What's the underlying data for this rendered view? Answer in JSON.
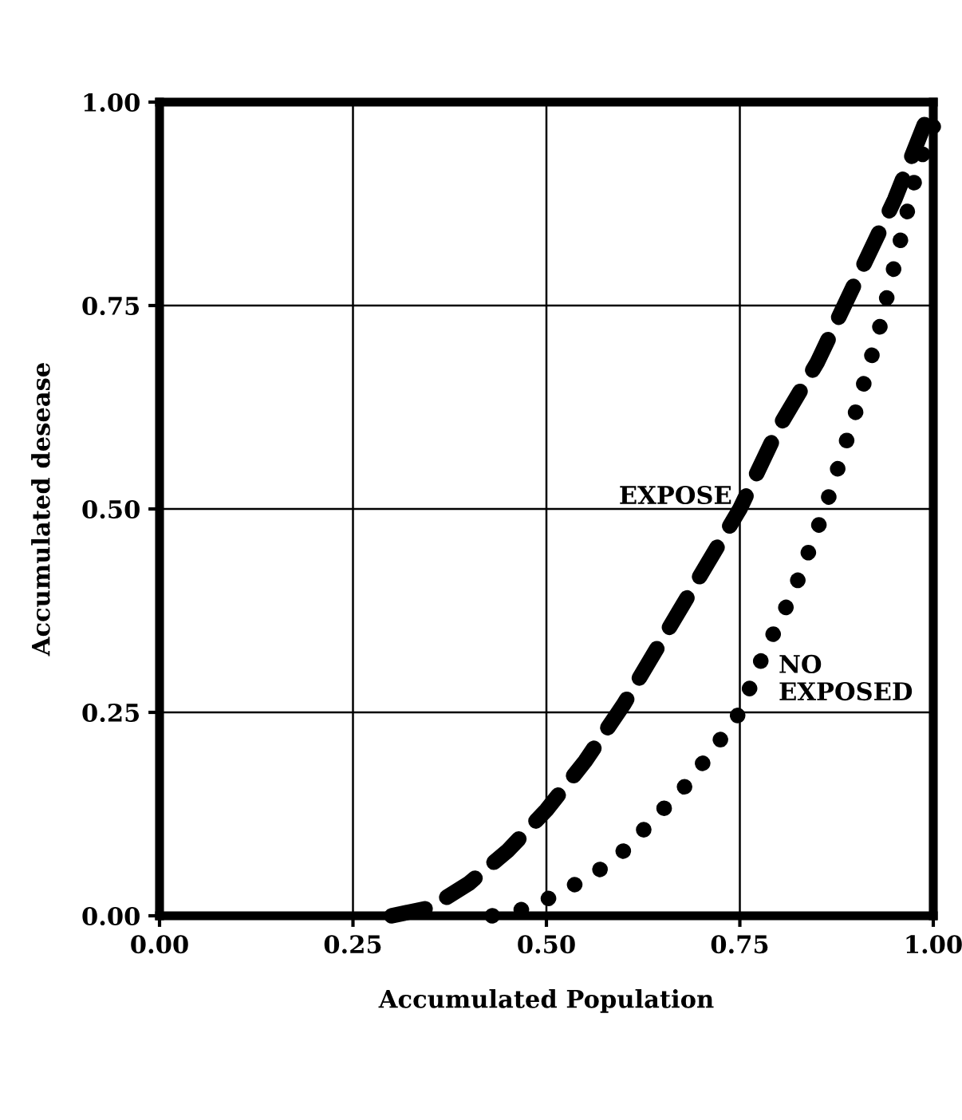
{
  "chart_data": {
    "type": "line",
    "xlabel": "Accumulated Population",
    "ylabel": "Accumulated desease",
    "xlim": [
      0,
      1
    ],
    "ylim": [
      0,
      1
    ],
    "xticks": [
      {
        "value": 0,
        "label": "0.00"
      },
      {
        "value": 0.25,
        "label": "0.25"
      },
      {
        "value": 0.5,
        "label": "0.50"
      },
      {
        "value": 0.75,
        "label": "0.75"
      },
      {
        "value": 1,
        "label": "1.00"
      }
    ],
    "yticks": [
      {
        "value": 0,
        "label": "0.00"
      },
      {
        "value": 0.25,
        "label": "0.25"
      },
      {
        "value": 0.5,
        "label": "0.50"
      },
      {
        "value": 0.75,
        "label": "0.75"
      },
      {
        "value": 1,
        "label": "1.00"
      }
    ],
    "grid": true,
    "legend": false,
    "marker": "none",
    "series": [
      {
        "color": "#000000",
        "line_style": "dashed",
        "x": [
          0.3,
          0.35,
          0.4,
          0.45,
          0.5,
          0.55,
          0.6,
          0.65,
          0.7,
          0.75,
          0.8,
          0.85,
          0.9,
          0.95,
          1.0
        ],
        "values": [
          0,
          0.01,
          0.04,
          0.08,
          0.13,
          0.19,
          0.26,
          0.34,
          0.42,
          0.5,
          0.6,
          0.68,
          0.78,
          0.88,
          1.0
        ]
      },
      {
        "color": "#000000",
        "line_style": "dotted",
        "x": [
          0.43,
          0.48,
          0.52,
          0.56,
          0.6,
          0.64,
          0.68,
          0.72,
          0.75,
          0.78,
          0.82,
          0.86,
          0.9,
          0.93,
          0.96,
          0.98,
          1.0
        ],
        "values": [
          0,
          0.01,
          0.03,
          0.05,
          0.08,
          0.12,
          0.16,
          0.21,
          0.25,
          0.32,
          0.4,
          0.5,
          0.62,
          0.72,
          0.84,
          0.92,
          0.97
        ]
      }
    ],
    "annotations": [
      {
        "text": "EXPOSE",
        "x": 0.75,
        "y": 0.5
      },
      {
        "text": "NO\nEXPOSED",
        "x": 0.78,
        "y": 0.32
      }
    ]
  }
}
